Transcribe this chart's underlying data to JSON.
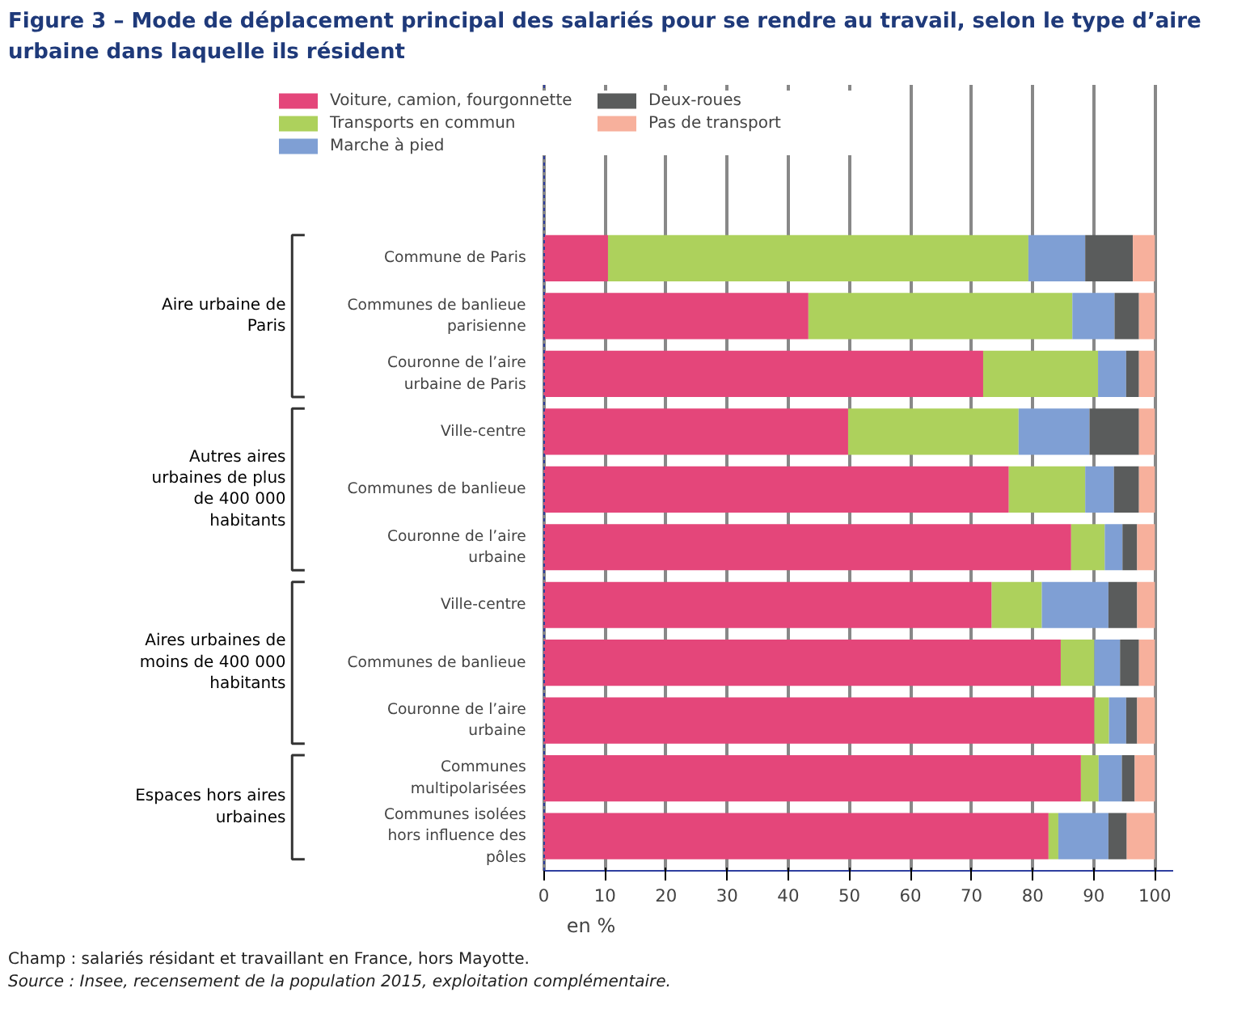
{
  "chart_data": {
    "type": "bar",
    "orientation": "horizontal",
    "stacked": true,
    "title": "Figure 3 – Mode de déplacement principal des salariés pour se rendre au travail, selon le type d’aire urbaine dans laquelle ils résident",
    "xlabel": "en %",
    "categories": [
      "Commune de Paris",
      "Communes de banlieue parisienne",
      "Couronne de l’aire urbaine de Paris",
      "Ville-centre",
      "Communes de banlieue",
      "Couronne de l’aire urbaine",
      "Ville-centre",
      "Communes de banlieue",
      "Couronne de l’aire urbaine",
      "Communes multipolarisées",
      "Communes isolées hors influence des pôles"
    ],
    "series": [
      {
        "name": "Voiture, camion, fourgonnette",
        "color": "#e4467a",
        "values": [
          10.5,
          43.3,
          71.9,
          49.8,
          76.1,
          86.3,
          73.3,
          84.6,
          90.1,
          87.9,
          82.6
        ]
      },
      {
        "name": "Transports en commun",
        "color": "#add15c",
        "values": [
          68.8,
          43.2,
          18.8,
          27.9,
          12.5,
          5.5,
          8.2,
          5.5,
          2.4,
          2.9,
          1.6
        ]
      },
      {
        "name": "Marche à pied",
        "color": "#7f9fd4",
        "values": [
          9.3,
          6.9,
          4.6,
          11.6,
          4.7,
          2.9,
          10.9,
          4.2,
          2.8,
          3.8,
          8.2
        ]
      },
      {
        "name": "Deux-roues",
        "color": "#5a5c5c",
        "values": [
          7.8,
          4.0,
          2.1,
          8.1,
          4.1,
          2.4,
          4.7,
          3.1,
          1.8,
          2.1,
          3.0
        ]
      },
      {
        "name": "Pas de transport",
        "color": "#f7b09c",
        "values": [
          3.6,
          2.6,
          2.6,
          2.6,
          2.6,
          2.9,
          2.9,
          2.6,
          2.9,
          3.3,
          4.6
        ]
      }
    ],
    "xlim": [
      0,
      103
    ],
    "xticks": [
      0,
      10,
      20,
      30,
      40,
      50,
      60,
      70,
      80,
      90,
      100
    ],
    "grid": "x",
    "legend": "top",
    "annotations": [
      "Aire urbaine de Paris",
      "Autres aires urbaines de plus de 400 000 habitants",
      "Aires urbaines de moins de 400 000 habitants",
      "Espaces hors aires urbaines",
      "Champ : salariés résidant et travaillant en France, hors Mayotte.",
      "Source : Insee, recensement de la population 2015, exploitation complémentaire."
    ]
  }
}
